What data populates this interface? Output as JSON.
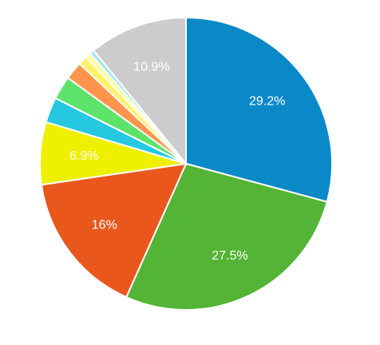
{
  "chart_data": {
    "type": "pie",
    "values": [
      29.2,
      27.5,
      16,
      6.9,
      2.8,
      2.6,
      2.0,
      1.0,
      0.6,
      0.5,
      10.9
    ],
    "value_labels": [
      "29.2%",
      "27.5%",
      "16%",
      "6.9%",
      null,
      null,
      null,
      null,
      null,
      null,
      "10.9%"
    ],
    "colors": [
      "#0a89c9",
      "#54b435",
      "#ea571d",
      "#eef000",
      "#25c8e0",
      "#5ee36a",
      "#ff944d",
      "#fff266",
      "#ffff99",
      "#9ee8f0",
      "#cccccc"
    ]
  }
}
